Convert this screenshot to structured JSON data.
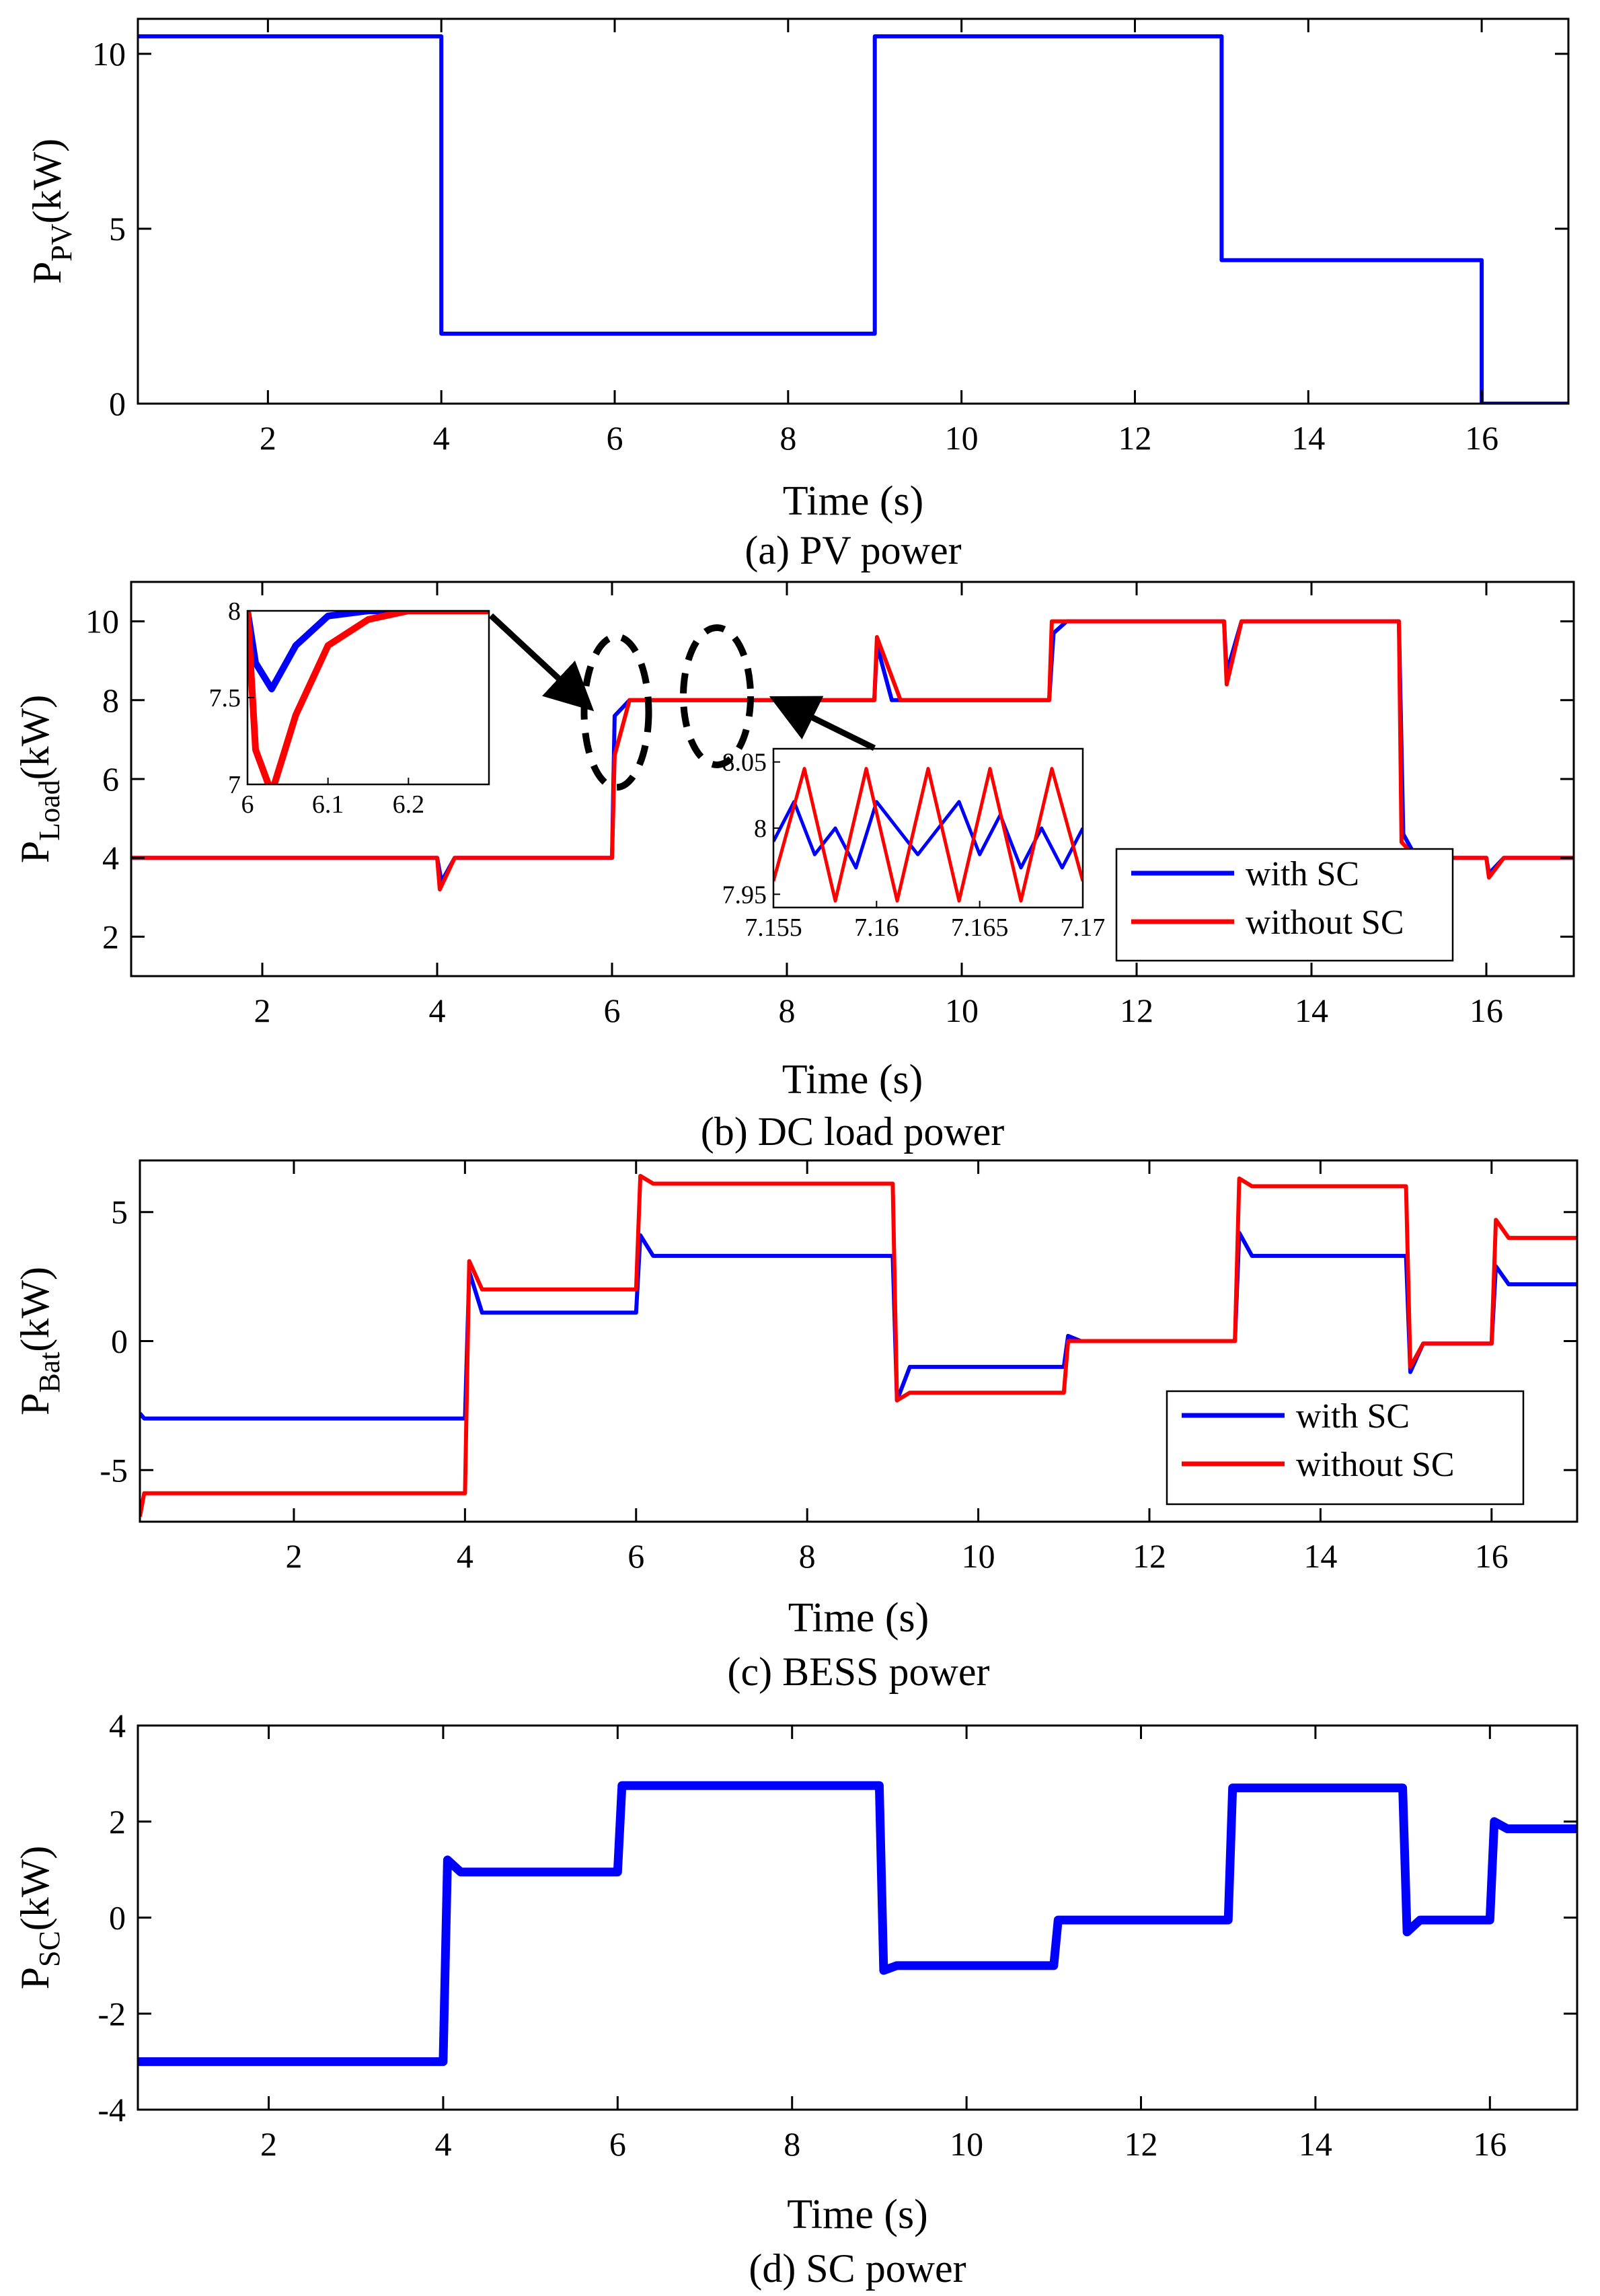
{
  "colors": {
    "with_sc": "#0000ff",
    "without_sc": "#ff0000",
    "axis": "#000000"
  },
  "chart_data": [
    {
      "id": "a",
      "type": "line",
      "caption": "(a) PV power",
      "xlabel": "Time (s)",
      "ylabel_main": "P",
      "ylabel_sub": "PV",
      "ylabel_unit": "(kW)",
      "xlim": [
        0.5,
        17
      ],
      "ylim": [
        0,
        11
      ],
      "xticks": [
        2,
        4,
        6,
        8,
        10,
        12,
        14,
        16
      ],
      "yticks": [
        0,
        5,
        10
      ],
      "legend": null,
      "series": [
        {
          "color": "#0000ff",
          "x": [
            0.5,
            4,
            4,
            9,
            9,
            13,
            13,
            16,
            16,
            17
          ],
          "y": [
            10.5,
            10.5,
            2,
            2,
            10.5,
            10.5,
            4.1,
            4.1,
            0,
            0
          ]
        }
      ]
    },
    {
      "id": "b",
      "type": "line",
      "caption": "(b) DC load power",
      "xlabel": "Time (s)",
      "ylabel_main": "P",
      "ylabel_sub": "Load",
      "ylabel_unit": "(kW)",
      "xlim": [
        0.5,
        17
      ],
      "ylim": [
        1,
        11
      ],
      "xticks": [
        2,
        4,
        6,
        8,
        10,
        12,
        14,
        16
      ],
      "yticks": [
        2,
        4,
        6,
        8,
        10
      ],
      "legend": {
        "position": "bottom-right",
        "entries": [
          "with SC",
          "without SC"
        ]
      },
      "series": [
        {
          "name": "with SC",
          "color": "#0000ff",
          "x": [
            0.5,
            4.0,
            4.05,
            4.2,
            6.0,
            6.03,
            6.2,
            9.0,
            9.03,
            9.2,
            11.0,
            11.05,
            11.2,
            13.0,
            13.03,
            13.2,
            15.0,
            15.05,
            15.2,
            16.0,
            16.03,
            16.2,
            17
          ],
          "y": [
            4,
            4,
            3.4,
            4,
            4,
            7.6,
            8,
            8,
            9.4,
            8,
            8,
            9.7,
            10,
            10,
            8.7,
            10,
            10,
            4.6,
            4,
            4,
            3.6,
            4,
            4
          ]
        },
        {
          "name": "without SC",
          "color": "#ff0000",
          "x": [
            0.5,
            4.0,
            4.03,
            4.2,
            6.0,
            6.03,
            6.2,
            9.0,
            9.03,
            9.3,
            11.0,
            11.03,
            11.2,
            13.0,
            13.03,
            13.2,
            15.0,
            15.03,
            15.2,
            16.0,
            16.03,
            16.2,
            17
          ],
          "y": [
            4,
            4,
            3.2,
            4,
            4,
            6.6,
            8,
            8,
            9.6,
            8,
            8,
            10,
            10,
            10,
            8.4,
            10,
            10,
            4.4,
            4,
            4,
            3.5,
            4,
            4
          ]
        }
      ],
      "insets": [
        {
          "xlim": [
            6,
            6.3
          ],
          "ylim": [
            7,
            8
          ],
          "xticks": [
            6,
            6.1,
            6.2
          ],
          "xtick_labels": [
            "6",
            "6.1",
            "6.2"
          ],
          "yticks": [
            7,
            7.5,
            8
          ],
          "ytick_labels": [
            "7",
            "7.5",
            "8"
          ],
          "series": [
            {
              "color": "#0000ff",
              "x": [
                6.0,
                6.01,
                6.03,
                6.06,
                6.1,
                6.15,
                6.3
              ],
              "y": [
                8.0,
                7.7,
                7.55,
                7.8,
                7.97,
                8.0,
                8.0
              ]
            },
            {
              "color": "#ff0000",
              "x": [
                6.0,
                6.01,
                6.03,
                6.06,
                6.1,
                6.15,
                6.2,
                6.3
              ],
              "y": [
                8.0,
                7.2,
                6.95,
                7.4,
                7.8,
                7.95,
                8.0,
                8.0
              ]
            }
          ]
        },
        {
          "xlim": [
            7.155,
            7.17
          ],
          "ylim": [
            7.94,
            8.06
          ],
          "xticks": [
            7.155,
            7.16,
            7.165,
            7.17
          ],
          "xtick_labels": [
            "7.155",
            "7.16",
            "7.165",
            "7.17"
          ],
          "yticks": [
            7.95,
            8,
            8.05
          ],
          "ytick_labels": [
            "7.95",
            "8",
            "8.05"
          ],
          "series": [
            {
              "color": "#0000ff",
              "x": [
                7.155,
                7.156,
                7.157,
                7.158,
                7.159,
                7.16,
                7.161,
                7.162,
                7.163,
                7.164,
                7.165,
                7.166,
                7.167,
                7.168,
                7.169,
                7.17
              ],
              "y": [
                7.99,
                8.02,
                7.98,
                8.0,
                7.97,
                8.02,
                8.0,
                7.98,
                8.0,
                8.02,
                7.98,
                8.01,
                7.97,
                8.0,
                7.97,
                8.0
              ]
            },
            {
              "color": "#ff0000",
              "x": [
                7.155,
                7.1565,
                7.158,
                7.1595,
                7.161,
                7.1625,
                7.164,
                7.1655,
                7.167,
                7.1685,
                7.17
              ],
              "y": [
                7.96,
                8.045,
                7.945,
                8.045,
                7.945,
                8.045,
                7.945,
                8.045,
                7.945,
                8.045,
                7.96
              ]
            }
          ]
        }
      ]
    },
    {
      "id": "c",
      "type": "line",
      "caption": "(c) BESS power",
      "xlabel": "Time (s)",
      "ylabel_main": "P",
      "ylabel_sub": "Bat",
      "ylabel_unit": "(kW)",
      "xlim": [
        0.2,
        17
      ],
      "ylim": [
        -7,
        7
      ],
      "xticks": [
        2,
        4,
        6,
        8,
        10,
        12,
        14,
        16
      ],
      "yticks": [
        -5,
        0,
        5
      ],
      "ytick_labels": [
        "-5",
        "0",
        "5"
      ],
      "legend": {
        "position": "right",
        "entries": [
          "with SC",
          "without SC"
        ]
      },
      "series": [
        {
          "name": "with SC",
          "color": "#0000ff",
          "x": [
            0.2,
            0.25,
            4.0,
            4.05,
            4.2,
            6.0,
            6.05,
            6.2,
            9.0,
            9.05,
            9.2,
            11.0,
            11.05,
            11.2,
            13.0,
            13.05,
            13.2,
            15.0,
            15.05,
            15.2,
            16.0,
            16.05,
            16.2,
            17
          ],
          "y": [
            -2.8,
            -3.0,
            -3.0,
            2.7,
            1.1,
            1.1,
            4.1,
            3.3,
            3.3,
            -2.3,
            -1.0,
            -1.0,
            0.2,
            0.0,
            0.0,
            4.2,
            3.3,
            3.3,
            -1.2,
            -0.1,
            -0.1,
            2.9,
            2.2,
            2.2
          ]
        },
        {
          "name": "without SC",
          "color": "#ff0000",
          "x": [
            0.2,
            0.25,
            4.0,
            4.05,
            4.2,
            6.0,
            6.05,
            6.2,
            9.0,
            9.05,
            9.2,
            11.0,
            11.05,
            11.2,
            13.0,
            13.05,
            13.2,
            15.0,
            15.05,
            15.2,
            16.0,
            16.05,
            16.2,
            17
          ],
          "y": [
            -6.8,
            -5.9,
            -5.9,
            3.1,
            2.0,
            2.0,
            6.4,
            6.1,
            6.1,
            -2.3,
            -2.0,
            -2.0,
            0.0,
            0.0,
            0.0,
            6.3,
            6.0,
            6.0,
            -1.0,
            -0.1,
            -0.1,
            4.7,
            4.0,
            4.0
          ]
        }
      ]
    },
    {
      "id": "d",
      "type": "line",
      "caption": "(d) SC power",
      "xlabel": "Time (s)",
      "ylabel_main": "P",
      "ylabel_sub": "SC",
      "ylabel_unit": "(kW)",
      "xlim": [
        0.5,
        17
      ],
      "ylim": [
        -4,
        4
      ],
      "xticks": [
        2,
        4,
        6,
        8,
        10,
        12,
        14,
        16
      ],
      "yticks": [
        -4,
        -2,
        0,
        2,
        4
      ],
      "ytick_labels": [
        "-4",
        "-2",
        "0",
        "2",
        "4"
      ],
      "legend": null,
      "series": [
        {
          "color": "#0000ff",
          "thick": true,
          "x": [
            0.5,
            4.0,
            4.05,
            4.2,
            6.0,
            6.05,
            9.0,
            9.05,
            9.2,
            11.0,
            11.05,
            13.0,
            13.05,
            15.0,
            15.05,
            15.2,
            16.0,
            16.05,
            16.2,
            17
          ],
          "y": [
            -3.0,
            -3.0,
            1.2,
            0.95,
            0.95,
            2.75,
            2.75,
            -1.1,
            -1.0,
            -1.0,
            -0.05,
            -0.05,
            2.7,
            2.7,
            -0.3,
            -0.05,
            -0.05,
            2.0,
            1.85,
            1.85
          ]
        }
      ]
    }
  ]
}
